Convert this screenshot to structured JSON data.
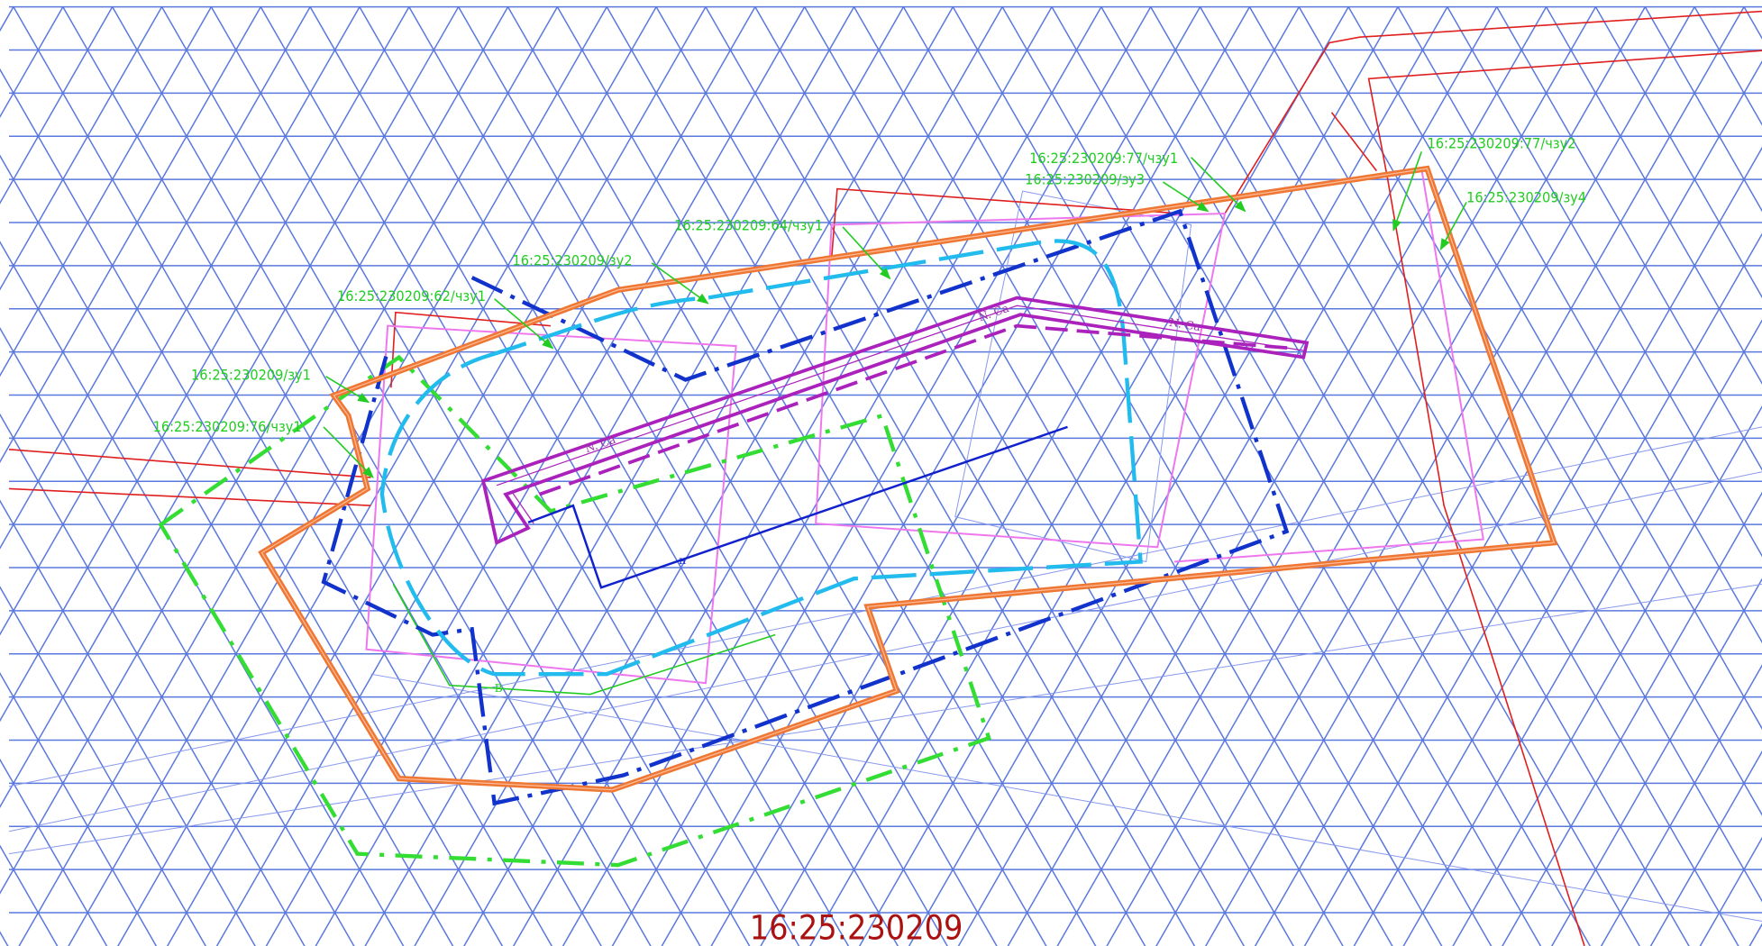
{
  "map_title": "16:25:230209",
  "labels": [
    "16:25:230209:77/чзу1",
    "16:25:230209/зу3",
    "16:25:230209:77/чзу2",
    "16:25:230209/зу4",
    "16:25:230209:64/чзу1",
    "16:25:230209/зу2",
    "16:25:230209:62/чзу1",
    "16:25:230209/зу1",
    "16:25:230209:76/чзу1"
  ],
  "marks": [
    "N. Ca",
    "N. Ca",
    "N. Ca",
    "н",
    "В"
  ]
}
